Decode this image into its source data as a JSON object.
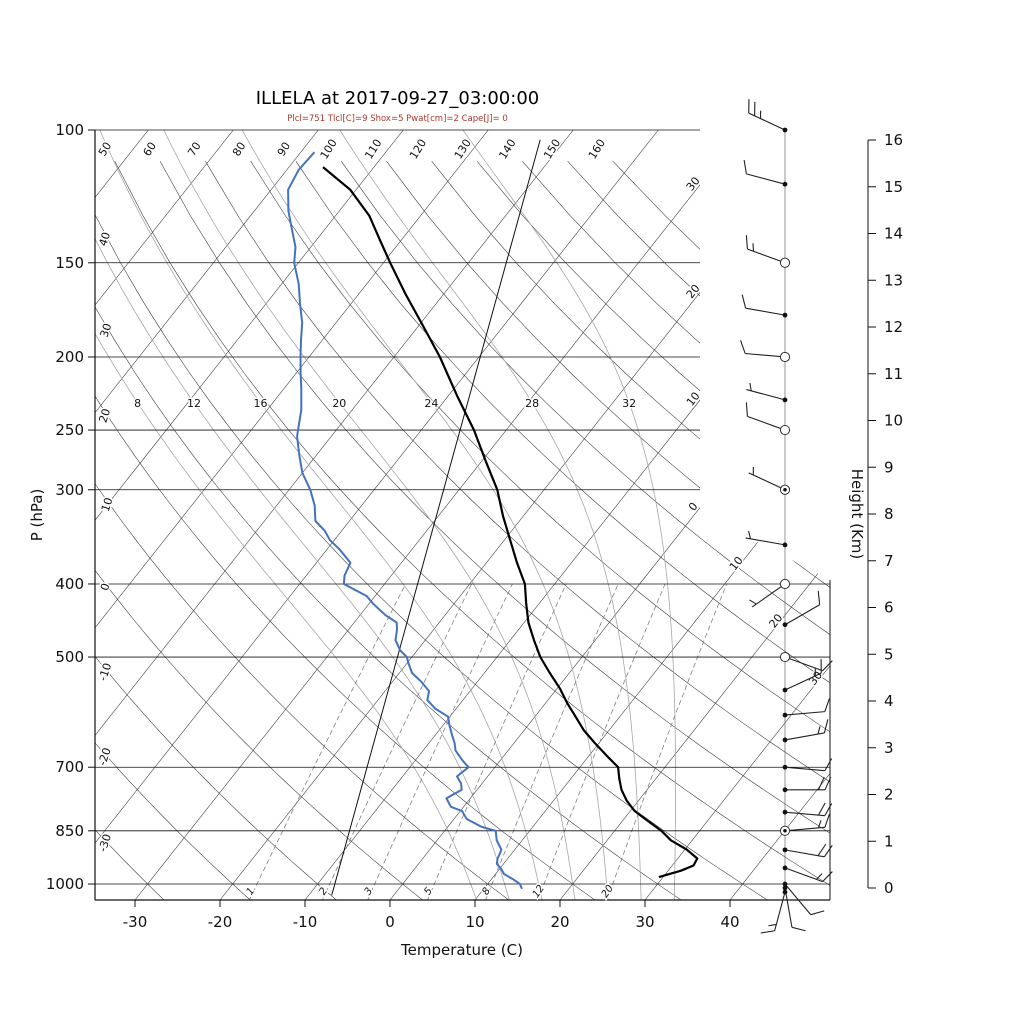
{
  "title": "ILLELA at 2017-09-27_03:00:00",
  "params_line": "Plcl=751 Tlcl[C]=9 Shox=5 Pwat[cm]=2 Cape[J]= 0",
  "colors": {
    "temperature": "#000000",
    "dewpoint": "#4472c0",
    "params_text": "#a6392e",
    "grid": "#1a1a1a",
    "moist_adiabat": "#a6a6a6",
    "mixing_ratio": "#808080"
  },
  "chart_data": {
    "type": "line",
    "subtype": "skew_t_log_p_sounding",
    "title": "ILLELA at 2017-09-27_03:00:00",
    "params_line": "Plcl=751 Tlcl[C]=9 Shox=5 Pwat[cm]=2 Cape[J]= 0",
    "axes": {
      "pressure_hpa": {
        "label": "P (hPa)",
        "scale": "log",
        "range": [
          100,
          1050
        ],
        "ticks": [
          100,
          150,
          200,
          250,
          300,
          400,
          500,
          700,
          850,
          1000
        ]
      },
      "temperature_c": {
        "label": "Temperature (C)",
        "skew": true,
        "ticks": [
          -30,
          -20,
          -10,
          0,
          10,
          20,
          30,
          40
        ]
      },
      "height_km": {
        "label": "Height (Km)",
        "ticks": [
          0,
          1,
          2,
          3,
          4,
          5,
          6,
          7,
          8,
          9,
          10,
          11,
          12,
          13,
          14,
          15,
          16
        ]
      }
    },
    "background": {
      "isotherms_c": {
        "start": -110,
        "end": 40,
        "step": 10
      },
      "isotherm_edge_labels": [
        {
          "t": -30,
          "text": "30"
        },
        {
          "t": -20,
          "text": "20"
        },
        {
          "t": -10,
          "text": "10"
        },
        {
          "t": 0,
          "text": "0"
        },
        {
          "t": 10,
          "text": "10"
        },
        {
          "t": 20,
          "text": "20"
        },
        {
          "t": 30,
          "text": "30"
        }
      ],
      "dry_adiabats_c": {
        "start": -30,
        "end": 160,
        "step": 10
      },
      "dry_adiabat_top_labels": [
        50,
        60,
        70,
        80,
        90,
        100,
        110,
        120,
        130,
        140,
        150,
        160
      ],
      "dry_adiabat_left_labels": [
        40,
        30,
        20,
        10,
        0,
        -10,
        -20,
        -30
      ],
      "moist_adiabats_c": [
        8,
        12,
        16,
        20,
        24,
        28,
        32
      ],
      "mixing_ratio_gkg": [
        1,
        2,
        3,
        5,
        8,
        12,
        20
      ]
    },
    "temperature_profile_pT": [
      [
        979,
        29.5
      ],
      [
        960,
        31.5
      ],
      [
        945,
        32.5
      ],
      [
        925,
        32.3
      ],
      [
        900,
        30.2
      ],
      [
        875,
        27.5
      ],
      [
        850,
        25.5
      ],
      [
        825,
        23.0
      ],
      [
        800,
        20.5
      ],
      [
        775,
        18.6
      ],
      [
        750,
        17.0
      ],
      [
        725,
        15.7
      ],
      [
        700,
        14.5
      ],
      [
        675,
        12.0
      ],
      [
        650,
        9.5
      ],
      [
        625,
        7.0
      ],
      [
        600,
        4.8
      ],
      [
        575,
        2.5
      ],
      [
        550,
        0.3
      ],
      [
        525,
        -2.3
      ],
      [
        500,
        -4.9
      ],
      [
        475,
        -7.2
      ],
      [
        450,
        -9.5
      ],
      [
        425,
        -11.5
      ],
      [
        400,
        -13.5
      ],
      [
        375,
        -16.4
      ],
      [
        350,
        -19.3
      ],
      [
        325,
        -22.4
      ],
      [
        300,
        -25.5
      ],
      [
        275,
        -29.5
      ],
      [
        250,
        -33.8
      ],
      [
        225,
        -39.0
      ],
      [
        200,
        -44.6
      ],
      [
        180,
        -50.0
      ],
      [
        165,
        -54.5
      ],
      [
        150,
        -59.2
      ],
      [
        140,
        -62.5
      ],
      [
        130,
        -66.0
      ],
      [
        120,
        -70.7
      ],
      [
        112,
        -76.0
      ]
    ],
    "dewpoint_profile_pT": [
      [
        1015,
        14.5
      ],
      [
        1000,
        13.8
      ],
      [
        985,
        12.5
      ],
      [
        970,
        11.0
      ],
      [
        955,
        10.2
      ],
      [
        940,
        9.2
      ],
      [
        925,
        8.8
      ],
      [
        910,
        8.6
      ],
      [
        900,
        8.4
      ],
      [
        875,
        7.0
      ],
      [
        850,
        6.0
      ],
      [
        840,
        4.0
      ],
      [
        820,
        1.5
      ],
      [
        800,
        0.2
      ],
      [
        790,
        -1.5
      ],
      [
        770,
        -2.8
      ],
      [
        750,
        -1.8
      ],
      [
        735,
        -2.5
      ],
      [
        720,
        -3.6
      ],
      [
        700,
        -3.1
      ],
      [
        685,
        -4.5
      ],
      [
        665,
        -6.2
      ],
      [
        650,
        -7.0
      ],
      [
        635,
        -8.0
      ],
      [
        615,
        -9.3
      ],
      [
        600,
        -10.2
      ],
      [
        585,
        -12.5
      ],
      [
        570,
        -14.2
      ],
      [
        555,
        -14.8
      ],
      [
        540,
        -16.5
      ],
      [
        525,
        -18.5
      ],
      [
        510,
        -19.8
      ],
      [
        500,
        -20.6
      ],
      [
        490,
        -22.0
      ],
      [
        475,
        -23.5
      ],
      [
        460,
        -24.3
      ],
      [
        450,
        -25.0
      ],
      [
        440,
        -27.0
      ],
      [
        425,
        -29.5
      ],
      [
        415,
        -31.0
      ],
      [
        400,
        -34.8
      ],
      [
        390,
        -35.5
      ],
      [
        375,
        -36.0
      ],
      [
        360,
        -38.5
      ],
      [
        350,
        -40.5
      ],
      [
        340,
        -42.0
      ],
      [
        330,
        -44.0
      ],
      [
        315,
        -45.5
      ],
      [
        300,
        -47.5
      ],
      [
        285,
        -50.0
      ],
      [
        270,
        -52.0
      ],
      [
        255,
        -54.0
      ],
      [
        250,
        -54.5
      ],
      [
        235,
        -56.0
      ],
      [
        220,
        -58.0
      ],
      [
        210,
        -59.5
      ],
      [
        200,
        -61.0
      ],
      [
        190,
        -62.5
      ],
      [
        180,
        -64.0
      ],
      [
        170,
        -66.0
      ],
      [
        160,
        -68.0
      ],
      [
        150,
        -70.5
      ],
      [
        143,
        -71.8
      ],
      [
        135,
        -74.0
      ],
      [
        128,
        -76.0
      ],
      [
        120,
        -78.0
      ],
      [
        113,
        -78.6
      ],
      [
        107,
        -78.4
      ]
    ],
    "aux_line_pT": [
      [
        1035,
        -7.3
      ],
      [
        103,
        -53.0
      ]
    ],
    "winds": [
      {
        "p": 100,
        "dir": 295,
        "spd": 25,
        "marker": "dot"
      },
      {
        "p": 118,
        "dir": 285,
        "spd": 10,
        "marker": "dot"
      },
      {
        "p": 150,
        "dir": 290,
        "spd": 15,
        "marker": "circle"
      },
      {
        "p": 176,
        "dir": 280,
        "spd": 10,
        "marker": "dot"
      },
      {
        "p": 200,
        "dir": 275,
        "spd": 10,
        "marker": "circle"
      },
      {
        "p": 228,
        "dir": 285,
        "spd": 5,
        "marker": "dot"
      },
      {
        "p": 250,
        "dir": 290,
        "spd": 10,
        "marker": "circle"
      },
      {
        "p": 300,
        "dir": 295,
        "spd": 5,
        "marker": "circle-dot"
      },
      {
        "p": 355,
        "dir": 280,
        "spd": 5,
        "marker": "dot"
      },
      {
        "p": 400,
        "dir": 235,
        "spd": 5,
        "marker": "circle"
      },
      {
        "p": 453,
        "dir": 60,
        "spd": 10,
        "marker": "dot"
      },
      {
        "p": 500,
        "dir": 110,
        "spd": 10,
        "marker": "circle"
      },
      {
        "p": 553,
        "dir": 65,
        "spd": 15,
        "marker": "dot"
      },
      {
        "p": 597,
        "dir": 85,
        "spd": 10,
        "marker": "dot"
      },
      {
        "p": 644,
        "dir": 80,
        "spd": 15,
        "marker": "dot"
      },
      {
        "p": 700,
        "dir": 95,
        "spd": 10,
        "marker": "dot"
      },
      {
        "p": 750,
        "dir": 90,
        "spd": 20,
        "marker": "dot"
      },
      {
        "p": 803,
        "dir": 95,
        "spd": 20,
        "marker": "dot"
      },
      {
        "p": 850,
        "dir": 85,
        "spd": 15,
        "marker": "circle-dot"
      },
      {
        "p": 901,
        "dir": 100,
        "spd": 20,
        "marker": "dot"
      },
      {
        "p": 952,
        "dir": 110,
        "spd": 15,
        "marker": "dot"
      },
      {
        "p": 1000,
        "dir": 140,
        "spd": 10,
        "marker": "dot"
      },
      {
        "p": 1012,
        "dir": 170,
        "spd": 10,
        "marker": "dot"
      },
      {
        "p": 1025,
        "dir": 195,
        "spd": 15,
        "marker": "dot"
      }
    ]
  }
}
